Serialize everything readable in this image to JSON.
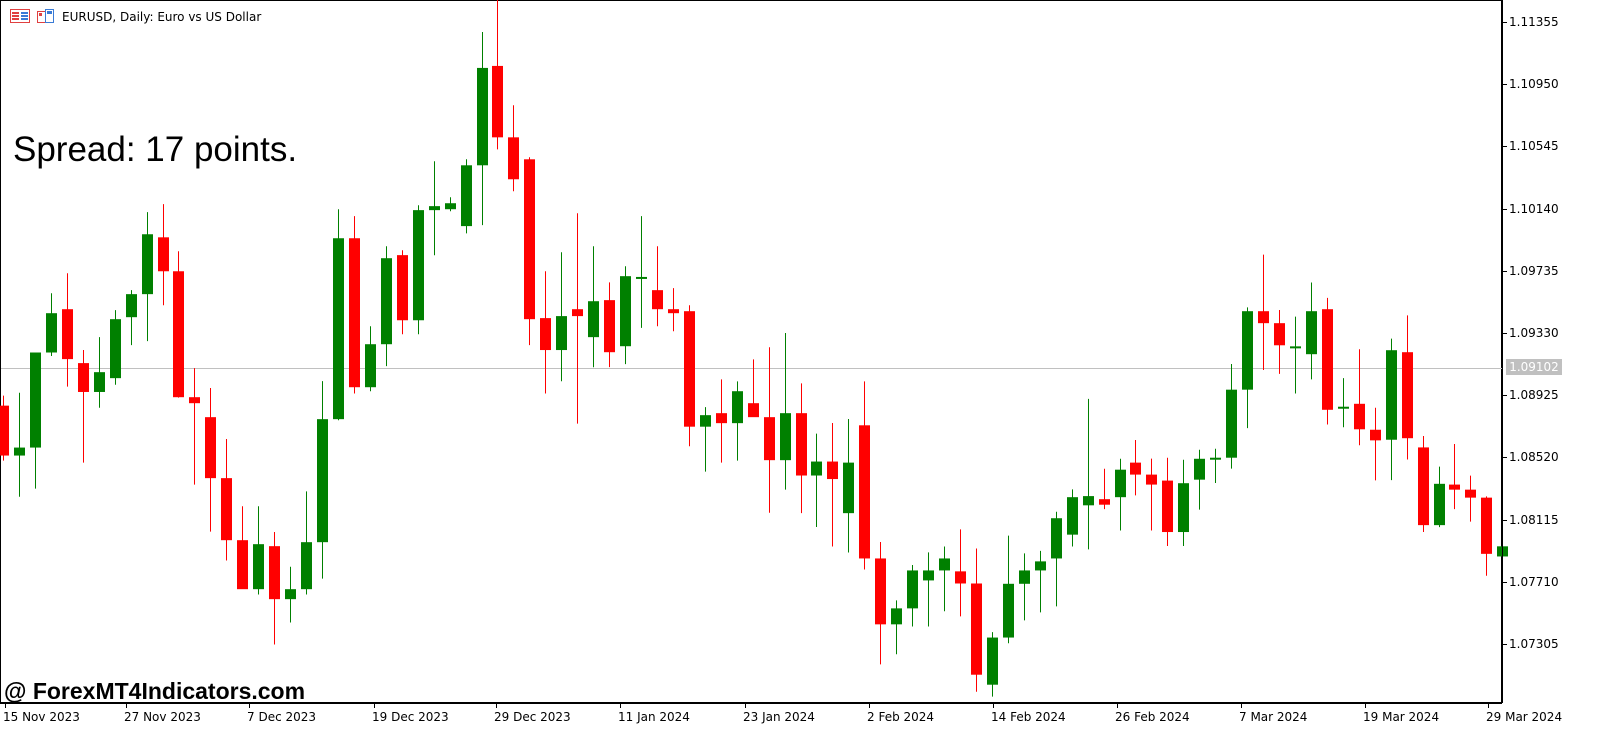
{
  "header": {
    "symbol_title": "EURUSD, Daily:  Euro vs US Dollar",
    "icons": [
      "list-icon",
      "window-icon"
    ]
  },
  "overlay": {
    "spread_text": "Spread: 17 points.",
    "watermark": "@ ForexMT4Indicators.com"
  },
  "current_price": {
    "label": "1.09102",
    "value": 1.09102,
    "line_color": "#c0c0c0"
  },
  "colors": {
    "bull": "#008000",
    "bear": "#ff0000",
    "axis": "#000000",
    "background": "#ffffff"
  },
  "chart_data": {
    "type": "candlestick",
    "title": "EURUSD, Daily: Euro vs US Dollar",
    "xlabel": "",
    "ylabel": "",
    "ylim": [
      1.0696,
      1.115
    ],
    "yticks": [
      1.11355,
      1.1095,
      1.10545,
      1.1014,
      1.09735,
      1.0933,
      1.08925,
      1.0852,
      1.08115,
      1.0771,
      1.07305
    ],
    "xticks": [
      {
        "label": "15 Nov 2023",
        "index": 0
      },
      {
        "label": "27 Nov 2023",
        "index": 8
      },
      {
        "label": "7 Dec 2023",
        "index": 16
      },
      {
        "label": "19 Dec 2023",
        "index": 24
      },
      {
        "label": "29 Dec 2023",
        "index": 32
      },
      {
        "label": "11 Jan 2024",
        "index": 40
      },
      {
        "label": "23 Jan 2024",
        "index": 48
      },
      {
        "label": "2 Feb 2024",
        "index": 56
      },
      {
        "label": "14 Feb 2024",
        "index": 64
      },
      {
        "label": "26 Feb 2024",
        "index": 72
      },
      {
        "label": "7 Mar 2024",
        "index": 80
      },
      {
        "label": "19 Mar 2024",
        "index": 88
      },
      {
        "label": "29 Mar 2024",
        "index": 96
      }
    ],
    "grid": false,
    "spread_points": 17,
    "candles": [
      {
        "o": 1.08857,
        "h": 1.08922,
        "l": 1.08499,
        "c": 1.08532
      },
      {
        "o": 1.08532,
        "h": 1.08941,
        "l": 1.08264,
        "c": 1.08584
      },
      {
        "o": 1.08584,
        "h": 1.09193,
        "l": 1.08317,
        "c": 1.09203
      },
      {
        "o": 1.09203,
        "h": 1.09589,
        "l": 1.0918,
        "c": 1.09459
      },
      {
        "o": 1.09485,
        "h": 1.09719,
        "l": 1.08981,
        "c": 1.0916
      },
      {
        "o": 1.09134,
        "h": 1.09219,
        "l": 1.08486,
        "c": 1.08946
      },
      {
        "o": 1.08946,
        "h": 1.09303,
        "l": 1.08843,
        "c": 1.09075
      },
      {
        "o": 1.09036,
        "h": 1.09479,
        "l": 1.08993,
        "c": 1.0942
      },
      {
        "o": 1.09433,
        "h": 1.09609,
        "l": 1.09251,
        "c": 1.09583
      },
      {
        "o": 1.09583,
        "h": 1.10117,
        "l": 1.09277,
        "c": 1.09973
      },
      {
        "o": 1.09953,
        "h": 1.10169,
        "l": 1.09511,
        "c": 1.09732
      },
      {
        "o": 1.09732,
        "h": 1.09862,
        "l": 1.08909,
        "c": 1.08912
      },
      {
        "o": 1.08912,
        "h": 1.09101,
        "l": 1.08343,
        "c": 1.08873
      },
      {
        "o": 1.08782,
        "h": 1.08972,
        "l": 1.08037,
        "c": 1.08385
      },
      {
        "o": 1.08385,
        "h": 1.0864,
        "l": 1.07849,
        "c": 1.07981
      },
      {
        "o": 1.07981,
        "h": 1.08202,
        "l": 1.07666,
        "c": 1.07662
      },
      {
        "o": 1.07662,
        "h": 1.08202,
        "l": 1.07627,
        "c": 1.07955
      },
      {
        "o": 1.07942,
        "h": 1.08034,
        "l": 1.07302,
        "c": 1.07597
      },
      {
        "o": 1.07597,
        "h": 1.07808,
        "l": 1.07445,
        "c": 1.07662
      },
      {
        "o": 1.07662,
        "h": 1.08299,
        "l": 1.07627,
        "c": 1.07968
      },
      {
        "o": 1.07968,
        "h": 1.09017,
        "l": 1.07731,
        "c": 1.08769
      },
      {
        "o": 1.08769,
        "h": 1.10136,
        "l": 1.08762,
        "c": 1.09947
      },
      {
        "o": 1.09947,
        "h": 1.10091,
        "l": 1.08936,
        "c": 1.08977
      },
      {
        "o": 1.08977,
        "h": 1.09374,
        "l": 1.08951,
        "c": 1.09257
      },
      {
        "o": 1.09257,
        "h": 1.09895,
        "l": 1.09114,
        "c": 1.09817
      },
      {
        "o": 1.09837,
        "h": 1.09869,
        "l": 1.09322,
        "c": 1.09413
      },
      {
        "o": 1.09413,
        "h": 1.10162,
        "l": 1.09322,
        "c": 1.1013
      },
      {
        "o": 1.1013,
        "h": 1.10448,
        "l": 1.09836,
        "c": 1.10156
      },
      {
        "o": 1.10136,
        "h": 1.10214,
        "l": 1.10123,
        "c": 1.10175
      },
      {
        "o": 1.10026,
        "h": 1.10461,
        "l": 1.09979,
        "c": 1.10422
      },
      {
        "o": 1.10422,
        "h": 1.1129,
        "l": 1.10032,
        "c": 1.11056
      },
      {
        "o": 1.11069,
        "h": 1.11505,
        "l": 1.10526,
        "c": 1.10604
      },
      {
        "o": 1.10604,
        "h": 1.10813,
        "l": 1.10253,
        "c": 1.10331
      },
      {
        "o": 1.10461,
        "h": 1.10474,
        "l": 1.09251,
        "c": 1.0942
      },
      {
        "o": 1.09427,
        "h": 1.09732,
        "l": 1.08936,
        "c": 1.09219
      },
      {
        "o": 1.09219,
        "h": 1.09856,
        "l": 1.09016,
        "c": 1.0944
      },
      {
        "o": 1.09485,
        "h": 1.1011,
        "l": 1.0874,
        "c": 1.0944
      },
      {
        "o": 1.09303,
        "h": 1.09895,
        "l": 1.09107,
        "c": 1.09537
      },
      {
        "o": 1.09544,
        "h": 1.0966,
        "l": 1.09108,
        "c": 1.09205
      },
      {
        "o": 1.09244,
        "h": 1.09765,
        "l": 1.09127,
        "c": 1.097
      },
      {
        "o": 1.09695,
        "h": 1.10091,
        "l": 1.09363,
        "c": 1.09695
      },
      {
        "o": 1.09609,
        "h": 1.09895,
        "l": 1.09374,
        "c": 1.09485
      },
      {
        "o": 1.09485,
        "h": 1.09622,
        "l": 1.09341,
        "c": 1.09459
      },
      {
        "o": 1.09472,
        "h": 1.09511,
        "l": 1.08593,
        "c": 1.0872
      },
      {
        "o": 1.0872,
        "h": 1.08847,
        "l": 1.08427,
        "c": 1.08795
      },
      {
        "o": 1.08808,
        "h": 1.09028,
        "l": 1.08486,
        "c": 1.08743
      },
      {
        "o": 1.08743,
        "h": 1.09015,
        "l": 1.08499,
        "c": 1.08951
      },
      {
        "o": 1.08873,
        "h": 1.09158,
        "l": 1.08821,
        "c": 1.08782
      },
      {
        "o": 1.08782,
        "h": 1.09237,
        "l": 1.0816,
        "c": 1.08502
      },
      {
        "o": 1.08502,
        "h": 1.0933,
        "l": 1.0831,
        "c": 1.08808
      },
      {
        "o": 1.08808,
        "h": 1.09002,
        "l": 1.08157,
        "c": 1.08402
      },
      {
        "o": 1.08402,
        "h": 1.08675,
        "l": 1.08067,
        "c": 1.08493
      },
      {
        "o": 1.08493,
        "h": 1.08744,
        "l": 1.0794,
        "c": 1.08379
      },
      {
        "o": 1.08157,
        "h": 1.0877,
        "l": 1.07901,
        "c": 1.08486
      },
      {
        "o": 1.08729,
        "h": 1.09015,
        "l": 1.0779,
        "c": 1.07862
      },
      {
        "o": 1.07862,
        "h": 1.07969,
        "l": 1.07172,
        "c": 1.07433
      },
      {
        "o": 1.07433,
        "h": 1.07589,
        "l": 1.07238,
        "c": 1.07537
      },
      {
        "o": 1.07537,
        "h": 1.07819,
        "l": 1.07419,
        "c": 1.07784
      },
      {
        "o": 1.07719,
        "h": 1.07902,
        "l": 1.07419,
        "c": 1.07784
      },
      {
        "o": 1.07784,
        "h": 1.0794,
        "l": 1.07518,
        "c": 1.07862
      },
      {
        "o": 1.07778,
        "h": 1.08051,
        "l": 1.07485,
        "c": 1.07699
      },
      {
        "o": 1.07699,
        "h": 1.07927,
        "l": 1.06994,
        "c": 1.07105
      },
      {
        "o": 1.0704,
        "h": 1.07382,
        "l": 1.06962,
        "c": 1.07347
      },
      {
        "o": 1.07347,
        "h": 1.08011,
        "l": 1.0731,
        "c": 1.07697
      },
      {
        "o": 1.07697,
        "h": 1.07895,
        "l": 1.07459,
        "c": 1.07784
      },
      {
        "o": 1.07784,
        "h": 1.07911,
        "l": 1.07511,
        "c": 1.07843
      },
      {
        "o": 1.07862,
        "h": 1.08166,
        "l": 1.0755,
        "c": 1.08124
      },
      {
        "o": 1.08017,
        "h": 1.08312,
        "l": 1.0794,
        "c": 1.08261
      },
      {
        "o": 1.08208,
        "h": 1.08901,
        "l": 1.07921,
        "c": 1.08268
      },
      {
        "o": 1.08248,
        "h": 1.08446,
        "l": 1.08183,
        "c": 1.08212
      },
      {
        "o": 1.08261,
        "h": 1.08511,
        "l": 1.08044,
        "c": 1.0844
      },
      {
        "o": 1.08486,
        "h": 1.08633,
        "l": 1.08273,
        "c": 1.08408
      },
      {
        "o": 1.08408,
        "h": 1.08512,
        "l": 1.08044,
        "c": 1.08343
      },
      {
        "o": 1.08369,
        "h": 1.08518,
        "l": 1.07943,
        "c": 1.08034
      },
      {
        "o": 1.08034,
        "h": 1.08505,
        "l": 1.07943,
        "c": 1.08352
      },
      {
        "o": 1.08375,
        "h": 1.0857,
        "l": 1.0818,
        "c": 1.08511
      },
      {
        "o": 1.08518,
        "h": 1.08576,
        "l": 1.08353,
        "c": 1.08518
      },
      {
        "o": 1.08518,
        "h": 1.09128,
        "l": 1.08447,
        "c": 1.08961
      },
      {
        "o": 1.08961,
        "h": 1.09497,
        "l": 1.08711,
        "c": 1.09472
      },
      {
        "o": 1.09472,
        "h": 1.0984,
        "l": 1.09089,
        "c": 1.09394
      },
      {
        "o": 1.09394,
        "h": 1.0948,
        "l": 1.09064,
        "c": 1.0925
      },
      {
        "o": 1.09243,
        "h": 1.09437,
        "l": 1.08936,
        "c": 1.09243
      },
      {
        "o": 1.09192,
        "h": 1.09659,
        "l": 1.09028,
        "c": 1.09472
      },
      {
        "o": 1.09485,
        "h": 1.09559,
        "l": 1.08734,
        "c": 1.0883
      },
      {
        "o": 1.0885,
        "h": 1.09036,
        "l": 1.08716,
        "c": 1.0885
      },
      {
        "o": 1.08869,
        "h": 1.09224,
        "l": 1.08599,
        "c": 1.08703
      },
      {
        "o": 1.087,
        "h": 1.08843,
        "l": 1.0837,
        "c": 1.08631
      },
      {
        "o": 1.08635,
        "h": 1.09293,
        "l": 1.08372,
        "c": 1.09218
      },
      {
        "o": 1.09205,
        "h": 1.09445,
        "l": 1.08506,
        "c": 1.08645
      },
      {
        "o": 1.08585,
        "h": 1.08659,
        "l": 1.08034,
        "c": 1.08079
      },
      {
        "o": 1.08079,
        "h": 1.0846,
        "l": 1.08066,
        "c": 1.08348
      },
      {
        "o": 1.08343,
        "h": 1.08607,
        "l": 1.08183,
        "c": 1.0831
      },
      {
        "o": 1.0831,
        "h": 1.08401,
        "l": 1.08102,
        "c": 1.08258
      },
      {
        "o": 1.08258,
        "h": 1.08266,
        "l": 1.07749,
        "c": 1.07892
      },
      {
        "o": 1.07875,
        "h": 1.08063,
        "l": 1.07686,
        "c": 1.07941
      }
    ]
  }
}
